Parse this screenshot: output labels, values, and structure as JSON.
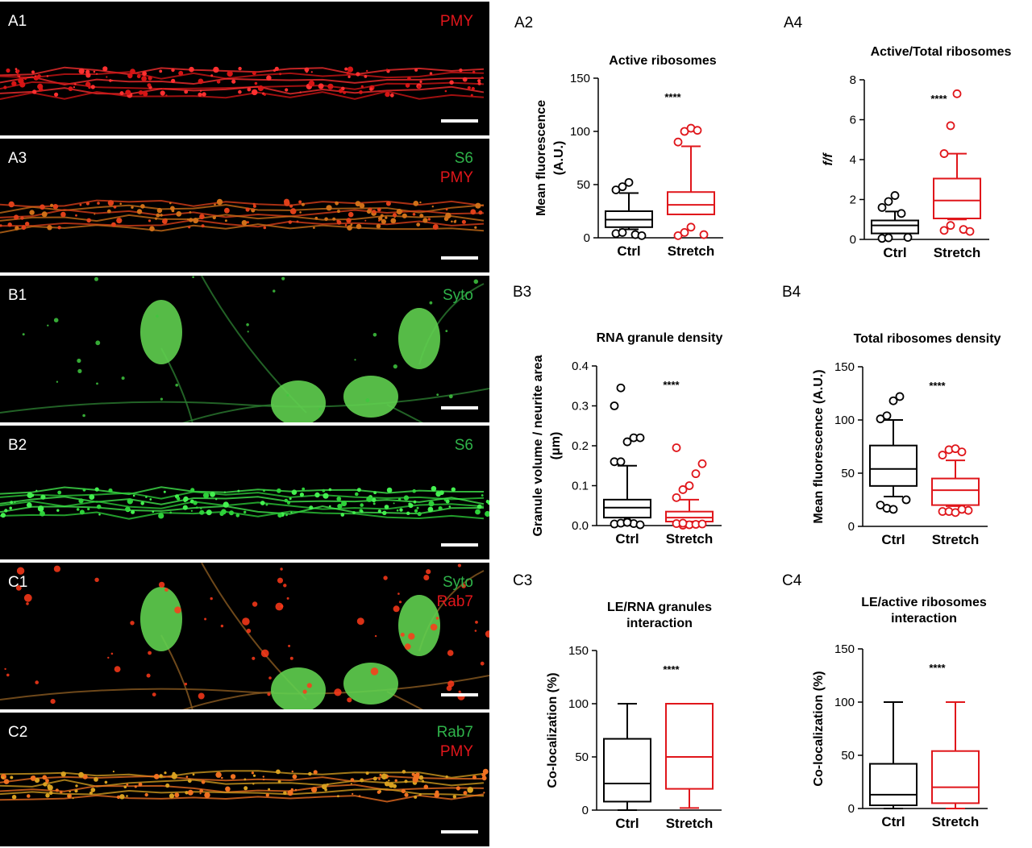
{
  "micrographs": [
    {
      "id": "A1",
      "height": 166,
      "channels": [
        {
          "text": "PMY",
          "color": "#e0161b"
        }
      ],
      "content": "red-axon"
    },
    {
      "id": "A3",
      "height": 166,
      "channels": [
        {
          "text": "S6",
          "color": "#2fb34a"
        },
        {
          "text": "PMY",
          "color": "#e0161b"
        }
      ],
      "content": "orange-axon"
    },
    {
      "id": "B1",
      "height": 182,
      "channels": [
        {
          "text": "Syto",
          "color": "#2fb34a"
        }
      ],
      "content": "green-cells"
    },
    {
      "id": "B2",
      "height": 166,
      "channels": [
        {
          "text": "S6",
          "color": "#2fb34a"
        }
      ],
      "content": "green-axon"
    },
    {
      "id": "C1",
      "height": 182,
      "channels": [
        {
          "text": "Syto",
          "color": "#2fb34a"
        },
        {
          "text": "Rab7",
          "color": "#e0161b"
        }
      ],
      "content": "cells-red"
    },
    {
      "id": "C2",
      "height": 166,
      "channels": [
        {
          "text": "Rab7",
          "color": "#2fb34a"
        },
        {
          "text": "PMY",
          "color": "#e0161b"
        }
      ],
      "content": "orange-axon2"
    }
  ],
  "colors": {
    "ctrl": "#000000",
    "stretch": "#e0161b"
  },
  "chart_data": [
    {
      "id": "A2",
      "type": "box",
      "title": "Active ribosomes",
      "ylabel": "Mean fluorescence (A.U.)",
      "ylim": [
        0,
        150
      ],
      "yticks": [
        0,
        50,
        100,
        150
      ],
      "categories": [
        "Ctrl",
        "Stretch"
      ],
      "significance": "****",
      "boxes": [
        {
          "name": "Ctrl",
          "whisker_low": 8,
          "q1": 10,
          "median": 17,
          "q3": 25,
          "whisker_high": 42,
          "outliers": [
            45,
            48,
            52,
            3,
            2,
            4,
            5
          ]
        },
        {
          "name": "Stretch",
          "whisker_low": 22,
          "q1": 22,
          "median": 31,
          "q3": 43,
          "whisker_high": 86,
          "outliers": [
            90,
            100,
            103,
            101,
            3,
            2,
            5,
            10
          ]
        }
      ]
    },
    {
      "id": "A4",
      "type": "box",
      "title": "Active/Total ribosomes",
      "ylabel": "f/f",
      "ylim": [
        0,
        8
      ],
      "yticks": [
        0,
        2,
        4,
        6,
        8
      ],
      "categories": [
        "Ctrl",
        "Stretch"
      ],
      "significance": "****",
      "boxes": [
        {
          "name": "Ctrl",
          "whisker_low": 0.3,
          "q1": 0.3,
          "median": 0.7,
          "q3": 0.95,
          "whisker_high": 1.4,
          "outliers": [
            1.6,
            1.9,
            2.2,
            1.3,
            0.1,
            0.05,
            0.08
          ]
        },
        {
          "name": "Stretch",
          "whisker_low": 1.0,
          "q1": 1.05,
          "median": 1.95,
          "q3": 3.05,
          "whisker_high": 4.3,
          "outliers": [
            4.3,
            5.7,
            7.3,
            0.5,
            0.4,
            0.45,
            0.7
          ]
        }
      ]
    },
    {
      "id": "B3",
      "type": "box",
      "title": "RNA granule density",
      "ylabel": "Granule volume / neurite area (μm)",
      "ylim": [
        0,
        0.4
      ],
      "yticks": [
        0.0,
        0.1,
        0.2,
        0.3,
        0.4
      ],
      "categories": [
        "Ctrl",
        "Stretch"
      ],
      "significance": "****",
      "boxes": [
        {
          "name": "Ctrl",
          "whisker_low": 0.01,
          "q1": 0.02,
          "median": 0.045,
          "q3": 0.065,
          "whisker_high": 0.15,
          "outliers": [
            0.16,
            0.16,
            0.21,
            0.22,
            0.22,
            0.3,
            0.345,
            0.01,
            0.005,
            0.002,
            0.004,
            0.006,
            0.008
          ]
        },
        {
          "name": "Stretch",
          "whisker_low": 0.003,
          "q1": 0.01,
          "median": 0.02,
          "q3": 0.035,
          "whisker_high": 0.065,
          "outliers": [
            0.07,
            0.09,
            0.1,
            0.13,
            0.155,
            0.195,
            0.001,
            0.002,
            0.003,
            0.004,
            0.005,
            0.006
          ]
        }
      ]
    },
    {
      "id": "B4",
      "type": "box",
      "title": "Total ribosomes density",
      "ylabel": "Mean fluorescence (A.U.)",
      "ylim": [
        0,
        150
      ],
      "yticks": [
        0,
        50,
        100,
        150
      ],
      "categories": [
        "Ctrl",
        "Stretch"
      ],
      "significance": "****",
      "boxes": [
        {
          "name": "Ctrl",
          "whisker_low": 28,
          "q1": 38,
          "median": 54,
          "q3": 76,
          "whisker_high": 100,
          "outliers": [
            101,
            104,
            118,
            122,
            25,
            20,
            17,
            16
          ]
        },
        {
          "name": "Stretch",
          "whisker_low": 19,
          "q1": 20,
          "median": 34,
          "q3": 45,
          "whisker_high": 62,
          "outliers": [
            67,
            72,
            73,
            70,
            15,
            14,
            14,
            13,
            16
          ]
        }
      ]
    },
    {
      "id": "C3",
      "type": "box",
      "title": "LE/RNA granules interaction",
      "ylabel": "Co-localization (%)",
      "ylim": [
        0,
        150
      ],
      "yticks": [
        0,
        50,
        100,
        150
      ],
      "categories": [
        "Ctrl",
        "Stretch"
      ],
      "significance": "****",
      "boxes": [
        {
          "name": "Ctrl",
          "whisker_low": 0,
          "q1": 8,
          "median": 25,
          "q3": 67,
          "whisker_high": 100,
          "outliers": []
        },
        {
          "name": "Stretch",
          "whisker_low": 2,
          "q1": 20,
          "median": 50,
          "q3": 100,
          "whisker_high": 100,
          "outliers": []
        }
      ]
    },
    {
      "id": "C4",
      "type": "box",
      "title": "LE/active ribosomes interaction",
      "ylabel": "Co-localization (%)",
      "ylim": [
        0,
        150
      ],
      "yticks": [
        0,
        50,
        100,
        150
      ],
      "categories": [
        "Ctrl",
        "Stretch"
      ],
      "significance": "****",
      "boxes": [
        {
          "name": "Ctrl",
          "whisker_low": 0,
          "q1": 3,
          "median": 13,
          "q3": 42,
          "whisker_high": 100,
          "outliers": []
        },
        {
          "name": "Stretch",
          "whisker_low": 0,
          "q1": 5,
          "median": 20,
          "q3": 54,
          "whisker_high": 100,
          "outliers": []
        }
      ]
    }
  ]
}
